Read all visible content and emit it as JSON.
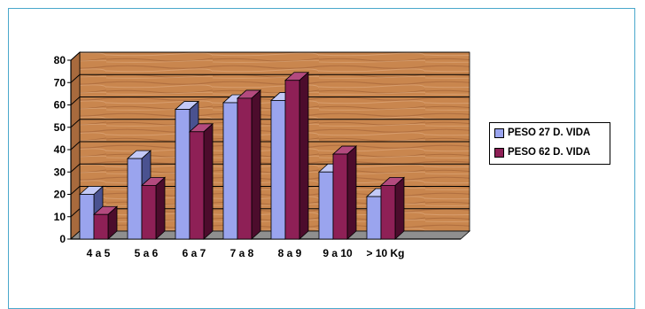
{
  "chart_data": {
    "type": "bar",
    "categories": [
      "4 a 5",
      "5 a 6",
      "6 a 7",
      "7 a 8",
      "8 a 9",
      "9 a 10",
      "> 10 Kg"
    ],
    "series": [
      {
        "name": "PESO 27 D. VIDA",
        "values": [
          20,
          36,
          58,
          61,
          62,
          30,
          19
        ]
      },
      {
        "name": "PESO 62 D. VIDA",
        "values": [
          11,
          24,
          48,
          63,
          71,
          38,
          24
        ]
      }
    ],
    "title": "",
    "xlabel": "",
    "ylabel": "",
    "ylim": [
      0,
      80
    ],
    "yticks": [
      0,
      10,
      20,
      30,
      40,
      50,
      60,
      70,
      80
    ],
    "grid": true,
    "style": "3d-clustered-column",
    "legend_position": "right",
    "colors": {
      "series1_front": "#9aa4ee",
      "series1_side": "#4a5290",
      "series1_top": "#c3c9f6",
      "series2_front": "#8e2056",
      "series2_side": "#4c0c2c",
      "series2_top": "#b34a7e",
      "wall": "#c9864e",
      "floor": "#8f8f8f"
    }
  }
}
